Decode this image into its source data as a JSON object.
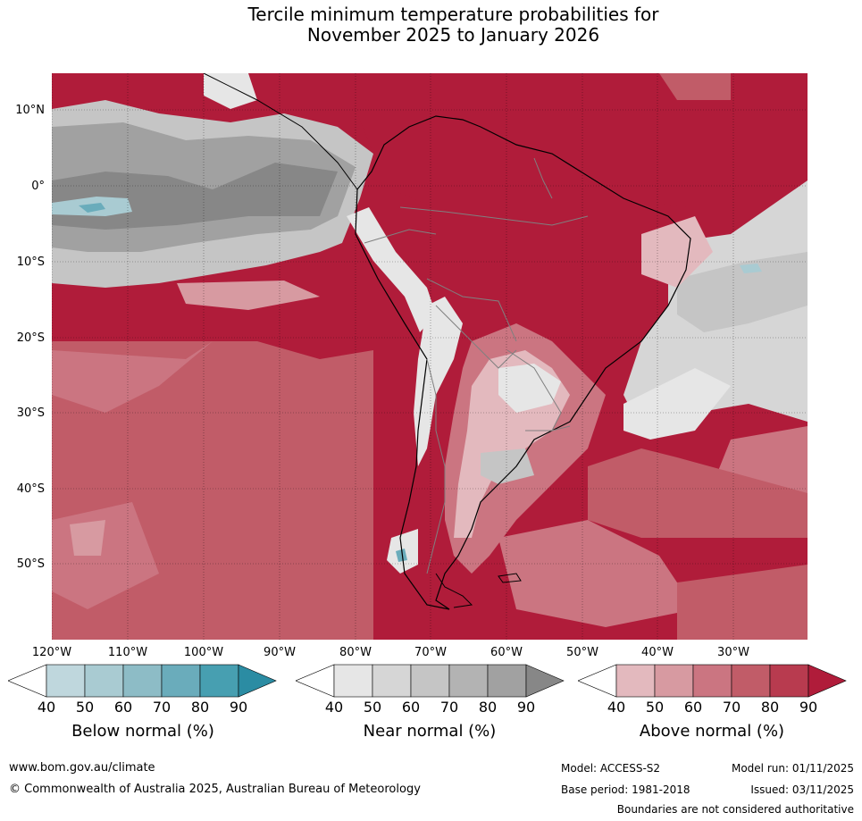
{
  "title": {
    "line1": "Tercile minimum temperature probabilities for",
    "line2": "November 2025 to January 2026"
  },
  "map": {
    "lat_labels": [
      "10°N",
      "0°",
      "10°S",
      "20°S",
      "30°S",
      "40°S",
      "50°S"
    ],
    "lon_labels": [
      "120°W",
      "110°W",
      "100°W",
      "90°W",
      "80°W",
      "70°W",
      "60°W",
      "50°W",
      "40°W",
      "30°W"
    ]
  },
  "legends": {
    "below": {
      "title": "Below normal (%)",
      "ticks": [
        "40",
        "50",
        "60",
        "70",
        "80",
        "90"
      ],
      "colors": [
        "#ffffff",
        "#bfd7dd",
        "#a9cbd2",
        "#8dbcc6",
        "#6aacbb",
        "#479fb1",
        "#2b8ca3"
      ]
    },
    "near": {
      "title": "Near normal (%)",
      "ticks": [
        "40",
        "50",
        "60",
        "70",
        "80",
        "90"
      ],
      "colors": [
        "#ffffff",
        "#e6e6e6",
        "#d6d6d6",
        "#c5c5c5",
        "#b3b3b3",
        "#a1a1a1",
        "#878787"
      ]
    },
    "above": {
      "title": "Above normal (%)",
      "ticks": [
        "40",
        "50",
        "60",
        "70",
        "80",
        "90"
      ],
      "colors": [
        "#ffffff",
        "#e3b9be",
        "#d79aa1",
        "#cb7581",
        "#c15c68",
        "#b83b4f",
        "#b01c3a"
      ]
    }
  },
  "footer": {
    "website": "www.bom.gov.au/climate",
    "copyright": "© Commonwealth of Australia 2025, Australian Bureau of Meteorology",
    "model": "Model: ACCESS-S2",
    "model_run": "Model run: 01/11/2025",
    "base_period": "Base period: 1981-2018",
    "issued": "Issued: 03/11/2025",
    "disclaimer": "Boundaries are not considered authoritative"
  }
}
